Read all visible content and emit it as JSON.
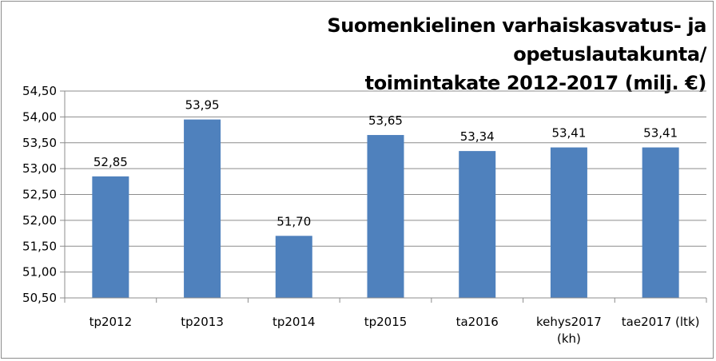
{
  "chart_data": {
    "type": "bar",
    "title_lines": [
      "Suomenkielinen varhaiskasvatus- ja opetuslautakunta/",
      "toimintakate 2012-2017 (milj. €)"
    ],
    "categories": [
      [
        "tp2012"
      ],
      [
        "tp2013"
      ],
      [
        "tp2014"
      ],
      [
        "tp2015"
      ],
      [
        "ta2016"
      ],
      [
        "kehys2017",
        "(kh)"
      ],
      [
        "tae2017 (ltk)"
      ]
    ],
    "values": [
      52.85,
      53.95,
      51.7,
      53.65,
      53.34,
      53.41,
      53.41
    ],
    "data_labels": [
      "52,85",
      "53,95",
      "51,70",
      "53,65",
      "53,34",
      "53,41",
      "53,41"
    ],
    "ylim": [
      50.5,
      54.5
    ],
    "yticks": [
      50.5,
      51.0,
      51.5,
      52.0,
      52.5,
      53.0,
      53.5,
      54.0,
      54.5
    ],
    "ytick_labels": [
      "50,50",
      "51,00",
      "51,50",
      "52,00",
      "52,50",
      "53,00",
      "53,50",
      "54,00",
      "54,50"
    ],
    "grid": true,
    "legend": false,
    "bar_color": "#4f81bd"
  }
}
